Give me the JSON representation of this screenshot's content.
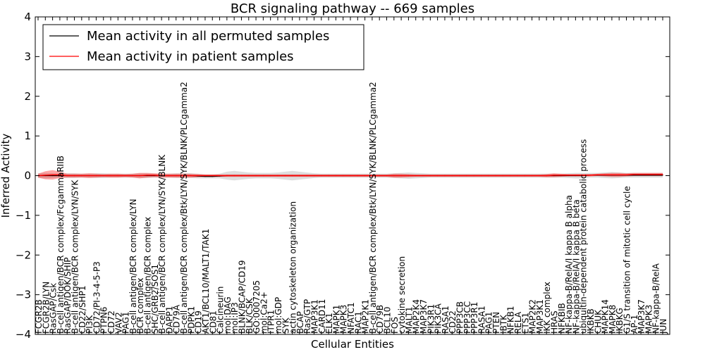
{
  "chart_data": {
    "type": "line",
    "title": "BCR signaling pathway -- 669 samples",
    "xlabel": "Cellular Entities",
    "ylabel": "Inferred Activity",
    "ylim": [
      -4,
      4
    ],
    "yticks": [
      -4,
      -3,
      -2,
      -1,
      0,
      1,
      2,
      3,
      4
    ],
    "grid": false,
    "legend_position": "top-left",
    "categories": [
      "FCGR2B",
      "FCGR2B/LYN",
      "RasGAP/Csk",
      "B-cell antigen/BCR complex/FcgammaRIIB",
      "RasGAP/DOK/SHIP",
      "B-cell antigen/BCR complex/LYN/SYK",
      "CD22/SHP1",
      "PI3K",
      "CD72/PI-3-4-5-P3",
      "PTPN6",
      "CD72",
      "VAV2",
      "PAG1",
      "B-cell antigen/BCR complex/LYN",
      "BCR complex",
      "B-cell antigen/BCR complex",
      "SHC/GRB2/SOS1",
      "B-cell antigen/BCR complex/LYN/SYK/BLNK",
      "DAPP1",
      "CD79A",
      "B-cell antigen/BCR complex/Btk/LYN/SYK/BLNK/PLCgamma2",
      "PDPK1",
      "CD19",
      "AKT1/BCL10/MALT1/TAK1",
      "CD81",
      "Calcineurin",
      "mol:DAG",
      "mol:IP3",
      "BLNK/BCAP/CD19",
      "BLK/CSK",
      "GO:0007205",
      "mol:Ca2+",
      "ITPR1",
      "mol:GDP",
      "SYK",
      "actin cytoskeleton organization",
      "BCAP",
      "Ras/GTP",
      "MAP3K1",
      "CARD11",
      "ELK1",
      "MAPK1",
      "MAPK3",
      "NFATC1",
      "RAC1",
      "MAP2K1",
      "B-cell antigen/BCR complex/Btk/LYN/SYK/BLNK/PLCgamma2",
      "CD79B",
      "BCL10",
      "FOS",
      "cytokine secretion",
      "MALT1",
      "MAP2K4",
      "MAP3K7",
      "PIK3R1",
      "PIK3CA",
      "RASA1",
      "CD22",
      "PPP3CB",
      "PPP3CC",
      "PPP3R1",
      "RASA1",
      "PAG1",
      "PTEN",
      "IBTK",
      "NFKB1",
      "RELA",
      "ETS1",
      "MAP2K2",
      "MAP3K1",
      "IKK complex",
      "HRAS",
      "NFKBIB",
      "NF-kappa-B/RelA/I kappa B alpha",
      "NF-kappa-B/RelA/I kappa B beta",
      "ubiquitin-dependent protein catabolic process",
      "IKBKB",
      "CHUK",
      "MAPK14",
      "MAPK8",
      "IKBKG",
      "G1/S transition of mitotic cell cycle",
      "AP-1",
      "MAP3K7",
      "MAPK3",
      "NF-kappa-B/RelA",
      "JUN"
    ],
    "series": [
      {
        "name": "Mean activity in all permuted samples",
        "color": "#000000",
        "values": [
          0.0,
          0.0,
          0.0,
          0.0,
          0.0,
          0.0,
          0.0,
          0.0,
          0.0,
          0.0,
          0.0,
          0.0,
          0.0,
          0.0,
          0.0,
          0.0,
          0.0,
          0.0,
          0.0,
          0.0,
          0.0,
          0.0,
          -0.01,
          -0.02,
          -0.02,
          -0.01,
          0.0,
          0.0,
          0.0,
          0.0,
          0.0,
          0.0,
          0.0,
          0.0,
          0.0,
          0.0,
          0.0,
          0.0,
          0.0,
          0.0,
          0.0,
          0.0,
          0.0,
          0.0,
          0.0,
          0.0,
          0.0,
          0.0,
          0.0,
          0.0,
          0.0,
          0.0,
          0.0,
          0.0,
          0.0,
          0.0,
          0.0,
          0.0,
          0.0,
          0.0,
          0.0,
          0.0,
          0.0,
          0.0,
          0.0,
          0.0,
          0.0,
          0.0,
          0.0,
          0.0,
          0.0,
          0.0,
          0.0,
          0.0,
          0.0,
          0.0,
          0.01,
          0.01,
          0.01,
          0.01,
          0.01,
          0.01,
          0.01,
          0.01,
          0.01,
          0.01,
          0.01
        ],
        "band": [
          0.06,
          0.07,
          0.06,
          0.05,
          0.06,
          0.06,
          0.05,
          0.05,
          0.06,
          0.06,
          0.05,
          0.05,
          0.05,
          0.05,
          0.06,
          0.06,
          0.05,
          0.05,
          0.05,
          0.06,
          0.06,
          0.06,
          0.06,
          0.05,
          0.05,
          0.06,
          0.1,
          0.12,
          0.1,
          0.08,
          0.07,
          0.07,
          0.07,
          0.08,
          0.1,
          0.12,
          0.1,
          0.08,
          0.06,
          0.05,
          0.05,
          0.05,
          0.05,
          0.05,
          0.05,
          0.05,
          0.05,
          0.05,
          0.05,
          0.06,
          0.07,
          0.08,
          0.07,
          0.06,
          0.05,
          0.05,
          0.05,
          0.05,
          0.05,
          0.05,
          0.05,
          0.05,
          0.05,
          0.05,
          0.05,
          0.05,
          0.05,
          0.05,
          0.05,
          0.05,
          0.05,
          0.05,
          0.05,
          0.06,
          0.07,
          0.07,
          0.06,
          0.06,
          0.07,
          0.08,
          0.07,
          0.06,
          0.06,
          0.06,
          0.06,
          0.06,
          0.06
        ]
      },
      {
        "name": "Mean activity in patient samples",
        "color": "#ff0000",
        "values": [
          0.0,
          0.01,
          0.02,
          0.02,
          0.0,
          0.0,
          0.0,
          0.0,
          0.0,
          0.0,
          0.0,
          0.0,
          0.0,
          0.0,
          0.0,
          0.01,
          0.01,
          0.0,
          0.0,
          0.0,
          0.0,
          0.0,
          0.0,
          0.0,
          0.0,
          0.0,
          0.0,
          0.0,
          0.0,
          0.0,
          0.0,
          0.0,
          0.0,
          0.0,
          0.0,
          0.0,
          0.0,
          0.0,
          0.0,
          0.0,
          0.0,
          0.0,
          0.0,
          0.0,
          0.0,
          0.0,
          0.0,
          0.0,
          0.0,
          0.0,
          0.0,
          0.0,
          0.0,
          0.0,
          0.0,
          0.0,
          0.0,
          0.0,
          0.0,
          0.0,
          0.0,
          0.0,
          0.0,
          0.0,
          0.0,
          0.0,
          0.0,
          0.0,
          0.0,
          0.0,
          0.0,
          0.01,
          0.01,
          0.01,
          0.01,
          0.01,
          0.01,
          0.02,
          0.02,
          0.02,
          0.02,
          0.02,
          0.03,
          0.03,
          0.03,
          0.03,
          0.03
        ],
        "band": [
          0.05,
          0.1,
          0.12,
          0.08,
          0.05,
          0.05,
          0.05,
          0.06,
          0.05,
          0.04,
          0.05,
          0.05,
          0.04,
          0.05,
          0.07,
          0.06,
          0.05,
          0.05,
          0.05,
          0.05,
          0.05,
          0.05,
          0.04,
          0.03,
          0.03,
          0.03,
          0.03,
          0.03,
          0.03,
          0.03,
          0.03,
          0.03,
          0.03,
          0.03,
          0.03,
          0.03,
          0.03,
          0.03,
          0.03,
          0.03,
          0.03,
          0.03,
          0.03,
          0.03,
          0.03,
          0.03,
          0.03,
          0.03,
          0.03,
          0.05,
          0.05,
          0.04,
          0.03,
          0.03,
          0.03,
          0.03,
          0.03,
          0.03,
          0.03,
          0.03,
          0.03,
          0.03,
          0.03,
          0.03,
          0.03,
          0.03,
          0.03,
          0.03,
          0.03,
          0.03,
          0.04,
          0.05,
          0.04,
          0.03,
          0.03,
          0.03,
          0.03,
          0.03,
          0.04,
          0.05,
          0.05,
          0.04,
          0.04,
          0.04,
          0.04,
          0.04,
          0.04
        ]
      }
    ]
  }
}
